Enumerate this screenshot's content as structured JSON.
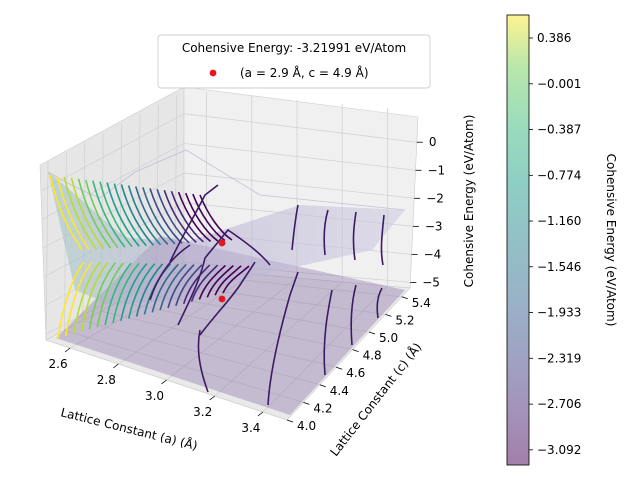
{
  "chart_data": {
    "type": "surface",
    "title": "",
    "xlabel": "Lattice Constant (a) (Å)",
    "ylabel": "Lattice Constant (c) (Å)",
    "zlabel": "Cohensive Energy (eV/Atom)",
    "x_ticks": [
      "2.6",
      "2.8",
      "3.0",
      "3.2",
      "3.4"
    ],
    "y_ticks": [
      "4.0",
      "4.2",
      "4.4",
      "4.6",
      "4.8",
      "5.0",
      "5.2",
      "5.4"
    ],
    "z_ticks": [
      "0",
      "−1",
      "−2",
      "−3",
      "−4",
      "−5"
    ],
    "xlim": [
      2.5,
      3.5
    ],
    "ylim": [
      4.0,
      5.5
    ],
    "zlim": [
      -5.2,
      0.9
    ],
    "minimum_point": {
      "a": 2.9,
      "c": 4.9,
      "energy": -3.21991
    },
    "legend": {
      "title": "Cohensive Energy: -3.21991 eV/Atom",
      "entry": "(a = 2.9 Å, c = 4.9 Å)",
      "placement": "top-center"
    },
    "colorbar": {
      "label": "Cohensive Energy (eV/Atom)",
      "colormap": "viridis",
      "ticks": [
        "0.386",
        "−0.001",
        "−0.387",
        "−0.774",
        "−1.160",
        "−1.546",
        "−1.933",
        "−2.319",
        "−2.706",
        "−3.092"
      ],
      "range": [
        -3.22,
        0.58
      ]
    },
    "colors": {
      "marker": "#e8161c",
      "surface_fill": "#7b6ba8",
      "pane": "#f2f2f2"
    }
  }
}
